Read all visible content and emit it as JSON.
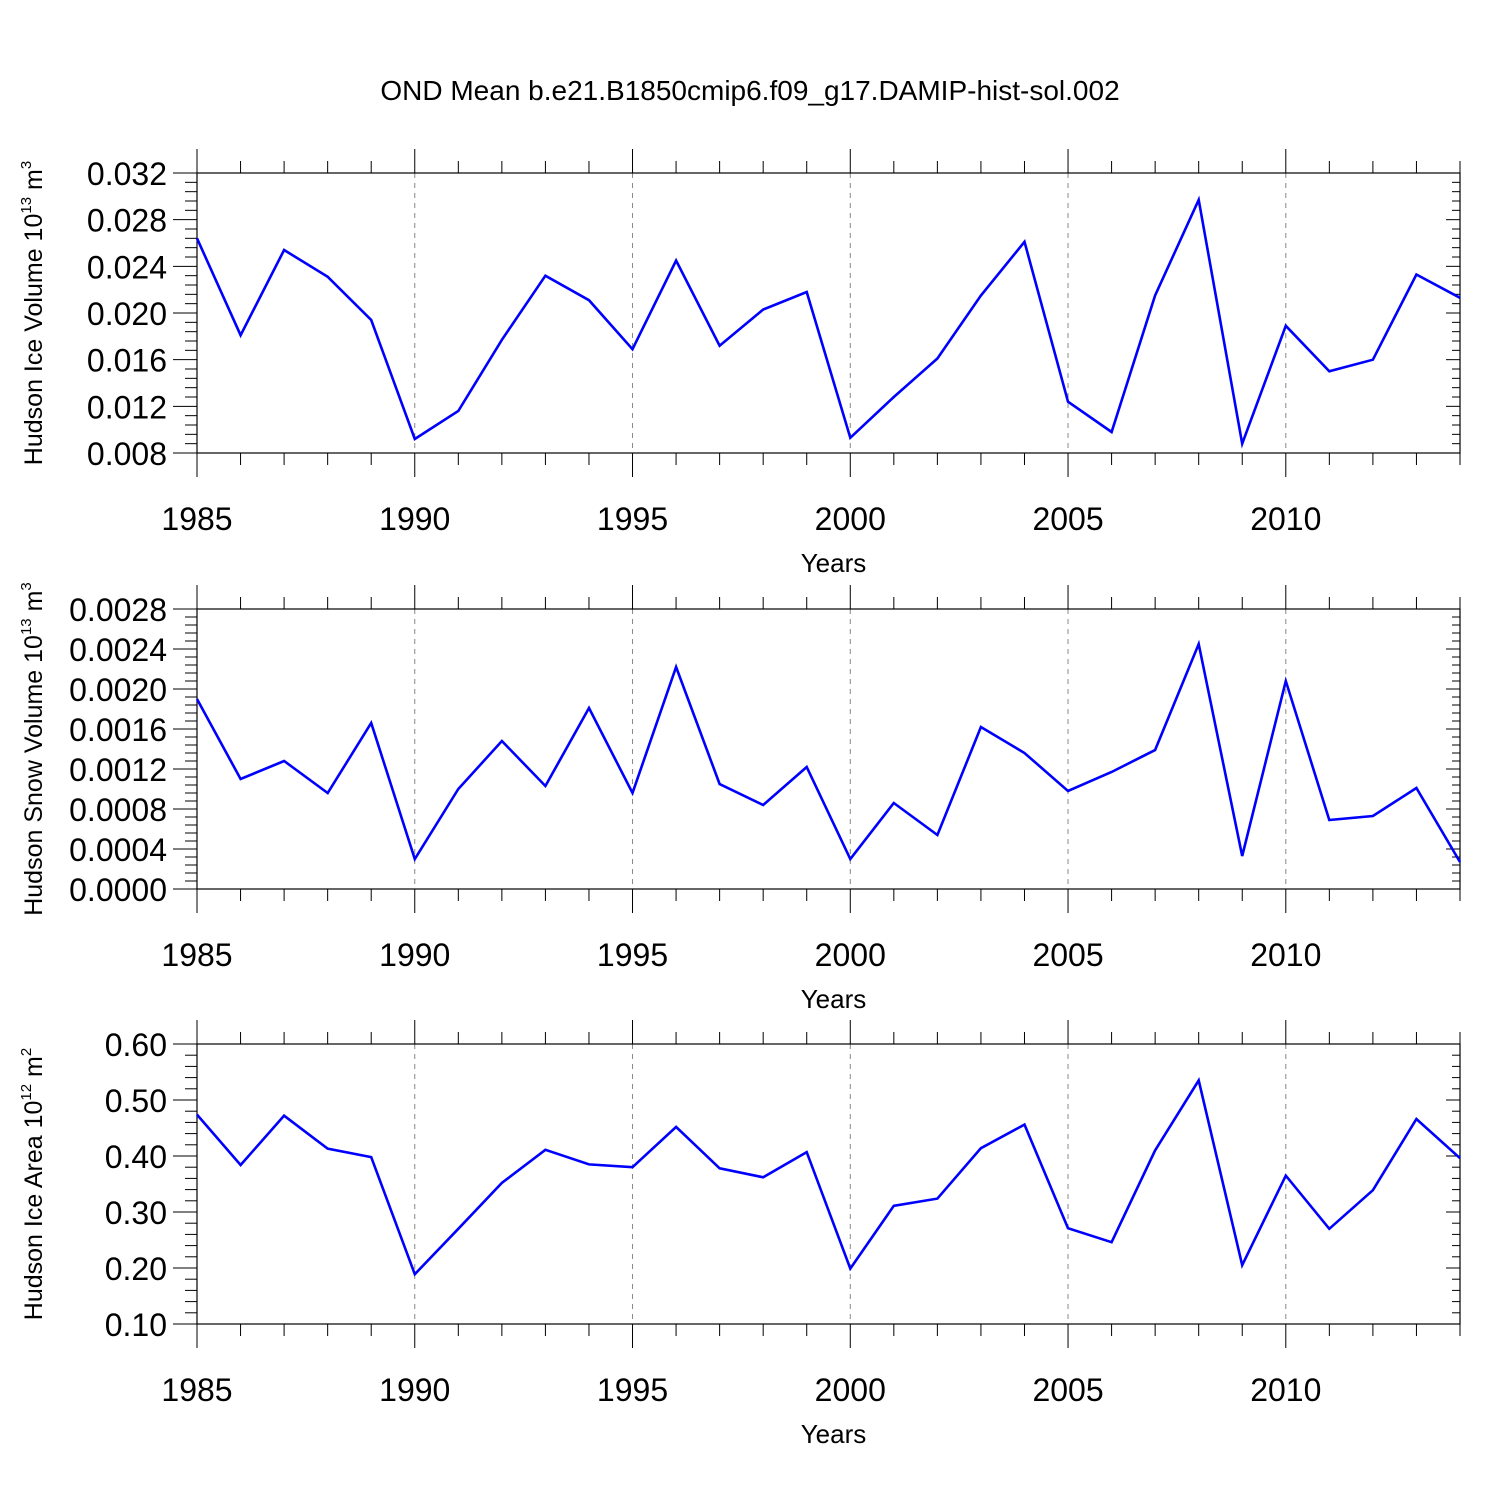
{
  "title": "OND Mean b.e21.B1850cmip6.f09_g17.DAMIP-hist-sol.002",
  "chart_data": [
    {
      "type": "line",
      "title": "OND Mean b.e21.B1850cmip6.f09_g17.DAMIP-hist-sol.002",
      "xlabel": "Years",
      "ylabel_main": "Hudson Ice Volume 10",
      "ylabel_exp": "13",
      "ylabel_unit": " m",
      "ylabel_unit_exp": "3",
      "xlim": [
        1985,
        2014
      ],
      "ylim": [
        0.008,
        0.032
      ],
      "xticks": [
        1985,
        1990,
        1995,
        2000,
        2005,
        2010
      ],
      "xtick_labels": [
        "1985",
        "1990",
        "1995",
        "2000",
        "2005",
        "2010"
      ],
      "yticks": [
        0.008,
        0.012,
        0.016,
        0.02,
        0.024,
        0.028,
        0.032
      ],
      "ytick_labels": [
        "0.008",
        "0.012",
        "0.016",
        "0.020",
        "0.024",
        "0.028",
        "0.032"
      ],
      "grid_x": [
        1990,
        1995,
        2000,
        2005,
        2010
      ],
      "series": [
        {
          "name": "Hudson Ice Volume",
          "color": "#0000ff",
          "x": [
            1985,
            1986,
            1987,
            1988,
            1989,
            1990,
            1991,
            1992,
            1993,
            1994,
            1995,
            1996,
            1997,
            1998,
            1999,
            2000,
            2001,
            2002,
            2003,
            2004,
            2005,
            2006,
            2007,
            2008,
            2009,
            2010,
            2011,
            2012,
            2013,
            2014
          ],
          "values": [
            0.0264,
            0.0181,
            0.0254,
            0.0231,
            0.0194,
            0.0092,
            0.0116,
            0.0177,
            0.0232,
            0.0211,
            0.0169,
            0.0245,
            0.0172,
            0.0203,
            0.0218,
            0.0093,
            0.0128,
            0.0161,
            0.0215,
            0.0261,
            0.0124,
            0.0098,
            0.0215,
            0.0297,
            0.0088,
            0.0189,
            0.015,
            0.016,
            0.0233,
            0.0213
          ]
        }
      ]
    },
    {
      "type": "line",
      "xlabel": "Years",
      "ylabel_main": "Hudson Snow Volume 10",
      "ylabel_exp": "13",
      "ylabel_unit": " m",
      "ylabel_unit_exp": "3",
      "xlim": [
        1985,
        2014
      ],
      "ylim": [
        0.0,
        0.0028
      ],
      "xticks": [
        1985,
        1990,
        1995,
        2000,
        2005,
        2010
      ],
      "xtick_labels": [
        "1985",
        "1990",
        "1995",
        "2000",
        "2005",
        "2010"
      ],
      "yticks": [
        0.0,
        0.0004,
        0.0008,
        0.0012,
        0.0016,
        0.002,
        0.0024,
        0.0028
      ],
      "ytick_labels": [
        "0.0000",
        "0.0004",
        "0.0008",
        "0.0012",
        "0.0016",
        "0.0020",
        "0.0024",
        "0.0028"
      ],
      "grid_x": [
        1990,
        1995,
        2000,
        2005,
        2010
      ],
      "series": [
        {
          "name": "Hudson Snow Volume",
          "color": "#0000ff",
          "x": [
            1985,
            1986,
            1987,
            1988,
            1989,
            1990,
            1991,
            1992,
            1993,
            1994,
            1995,
            1996,
            1997,
            1998,
            1999,
            2000,
            2001,
            2002,
            2003,
            2004,
            2005,
            2006,
            2007,
            2008,
            2009,
            2010,
            2011,
            2012,
            2013,
            2014
          ],
          "values": [
            0.0019,
            0.0011,
            0.00128,
            0.00096,
            0.00166,
            0.0003,
            0.001,
            0.00148,
            0.00103,
            0.00181,
            0.00096,
            0.00222,
            0.00105,
            0.00084,
            0.00122,
            0.0003,
            0.00086,
            0.00054,
            0.00162,
            0.00136,
            0.00098,
            0.00117,
            0.00139,
            0.00245,
            0.00033,
            0.00208,
            0.00069,
            0.00073,
            0.00101,
            0.00027
          ]
        }
      ]
    },
    {
      "type": "line",
      "xlabel": "Years",
      "ylabel_main": "Hudson Ice Area 10",
      "ylabel_exp": "12",
      "ylabel_unit": " m",
      "ylabel_unit_exp": "2",
      "xlim": [
        1985,
        2014
      ],
      "ylim": [
        0.1,
        0.6
      ],
      "xticks": [
        1985,
        1990,
        1995,
        2000,
        2005,
        2010
      ],
      "xtick_labels": [
        "1985",
        "1990",
        "1995",
        "2000",
        "2005",
        "2010"
      ],
      "yticks": [
        0.1,
        0.2,
        0.3,
        0.4,
        0.5,
        0.6
      ],
      "ytick_labels": [
        "0.10",
        "0.20",
        "0.30",
        "0.40",
        "0.50",
        "0.60"
      ],
      "grid_x": [
        1990,
        1995,
        2000,
        2005,
        2010
      ],
      "series": [
        {
          "name": "Hudson Ice Area",
          "color": "#0000ff",
          "x": [
            1985,
            1986,
            1987,
            1988,
            1989,
            1990,
            1991,
            1992,
            1993,
            1994,
            1995,
            1996,
            1997,
            1998,
            1999,
            2000,
            2001,
            2002,
            2003,
            2004,
            2005,
            2006,
            2007,
            2008,
            2009,
            2010,
            2011,
            2012,
            2013,
            2014
          ],
          "values": [
            0.474,
            0.384,
            0.472,
            0.413,
            0.398,
            0.189,
            0.27,
            0.352,
            0.411,
            0.385,
            0.38,
            0.452,
            0.378,
            0.362,
            0.407,
            0.199,
            0.311,
            0.324,
            0.414,
            0.456,
            0.271,
            0.246,
            0.41,
            0.535,
            0.205,
            0.365,
            0.27,
            0.339,
            0.466,
            0.396
          ]
        }
      ]
    }
  ]
}
